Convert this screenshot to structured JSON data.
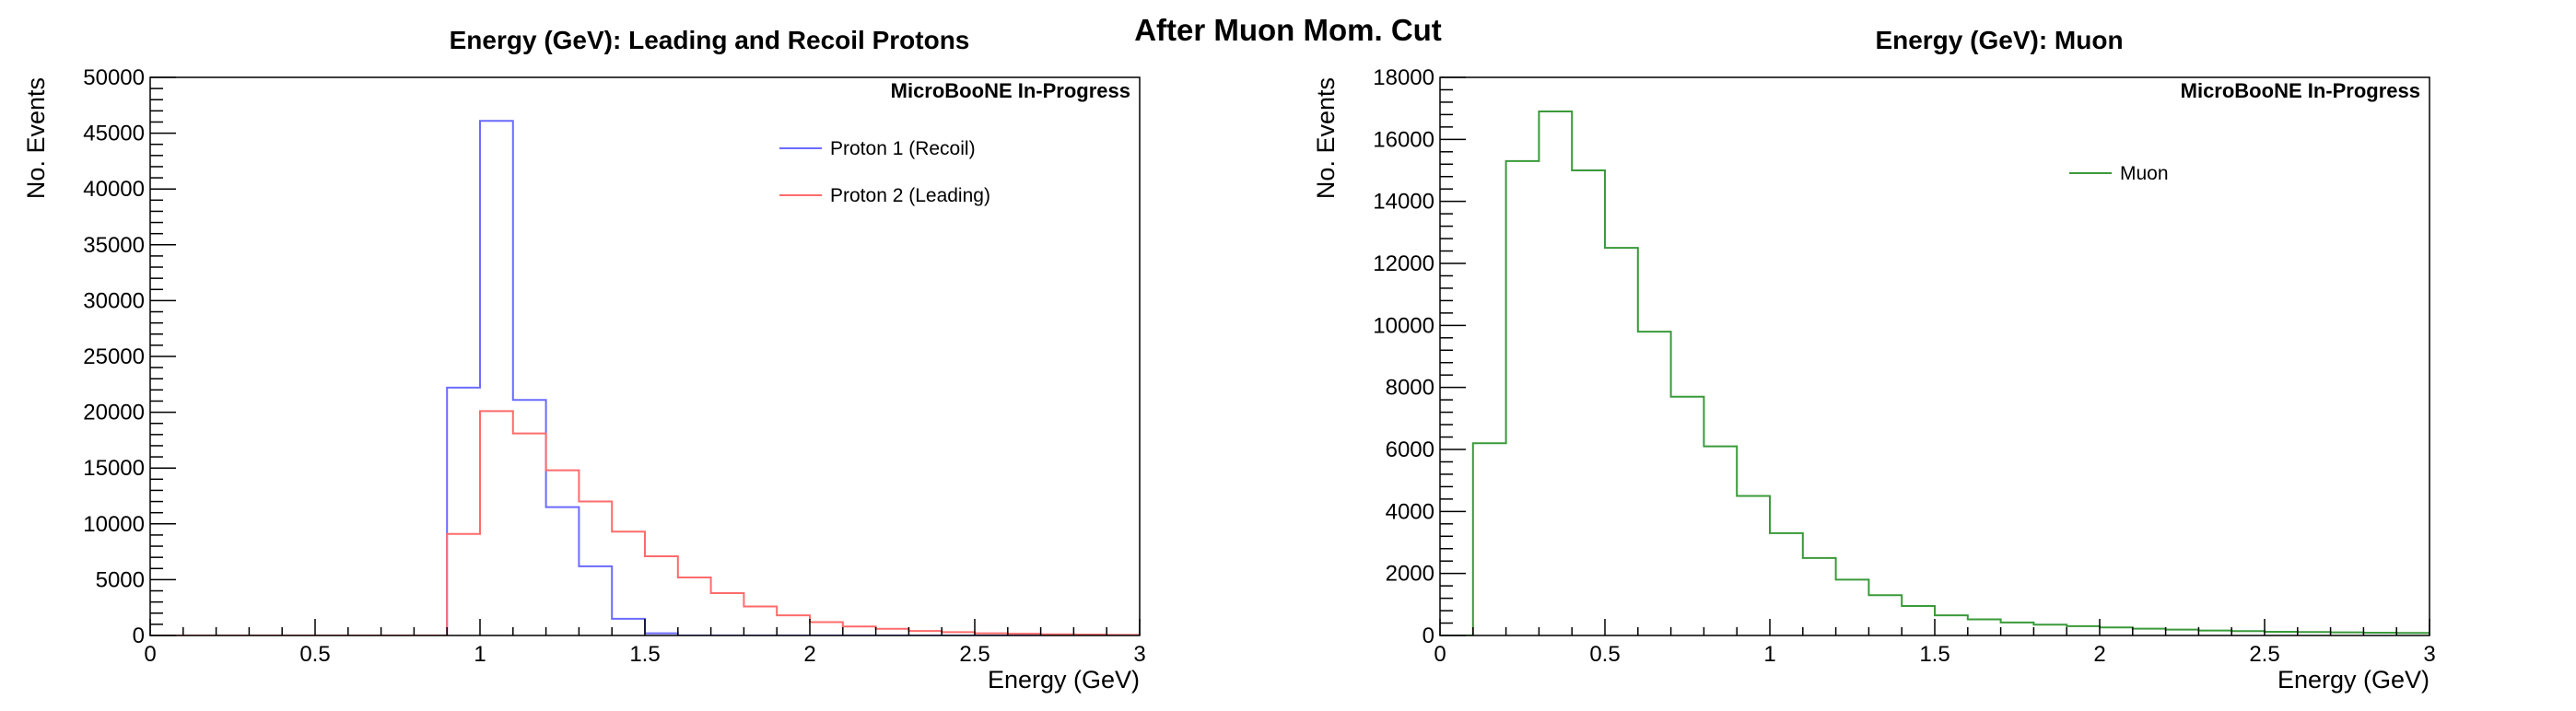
{
  "super_title": "After Muon Mom. Cut",
  "chart_data": [
    {
      "type": "histogram",
      "title": "Energy (GeV): Leading and Recoil Protons",
      "xlabel": "Energy (GeV)",
      "ylabel": "No. Events",
      "xlim": [
        0,
        3
      ],
      "ylim": [
        0,
        50000
      ],
      "bin_width": 0.1,
      "x_ticks": [
        "0",
        "0.5",
        "1",
        "1.5",
        "2",
        "2.5",
        "3"
      ],
      "y_ticks": [
        "0",
        "5000",
        "10000",
        "15000",
        "20000",
        "25000",
        "30000",
        "35000",
        "40000",
        "45000",
        "50000"
      ],
      "tag": "MicroBooNE In-Progress",
      "legend_position": "top-right",
      "grid": false,
      "series": [
        {
          "name": "Proton 1 (Recoil)",
          "color": "#6b6bff",
          "bin_edges": [
            0.0,
            0.1,
            0.2,
            0.3,
            0.4,
            0.5,
            0.6,
            0.7,
            0.8,
            0.9,
            1.0,
            1.1,
            1.2,
            1.3,
            1.4,
            1.5,
            1.6,
            1.7,
            1.8,
            1.9,
            2.0,
            2.1,
            2.2,
            2.3,
            2.4,
            2.5,
            2.6,
            2.7,
            2.8,
            2.9,
            3.0
          ],
          "values": [
            0,
            0,
            0,
            0,
            0,
            0,
            0,
            0,
            0,
            22200,
            46100,
            21100,
            11500,
            6200,
            1500,
            200,
            0,
            0,
            0,
            0,
            0,
            0,
            0,
            0,
            0,
            0,
            0,
            0,
            0,
            0
          ]
        },
        {
          "name": "Proton 2 (Leading)",
          "color": "#ff6b6b",
          "bin_edges": [
            0.0,
            0.1,
            0.2,
            0.3,
            0.4,
            0.5,
            0.6,
            0.7,
            0.8,
            0.9,
            1.0,
            1.1,
            1.2,
            1.3,
            1.4,
            1.5,
            1.6,
            1.7,
            1.8,
            1.9,
            2.0,
            2.1,
            2.2,
            2.3,
            2.4,
            2.5,
            2.6,
            2.7,
            2.8,
            2.9,
            3.0
          ],
          "values": [
            0,
            0,
            0,
            0,
            0,
            0,
            0,
            0,
            0,
            9100,
            20100,
            18100,
            14800,
            12000,
            9300,
            7100,
            5200,
            3800,
            2600,
            1800,
            1200,
            800,
            600,
            400,
            300,
            200,
            150,
            100,
            80,
            50
          ]
        }
      ]
    },
    {
      "type": "histogram",
      "title": "Energy (GeV): Muon",
      "xlabel": "Energy (GeV)",
      "ylabel": "No. Events",
      "xlim": [
        0,
        3
      ],
      "ylim": [
        0,
        18000
      ],
      "bin_width": 0.1,
      "x_ticks": [
        "0",
        "0.5",
        "1",
        "1.5",
        "2",
        "2.5",
        "3"
      ],
      "y_ticks": [
        "0",
        "2000",
        "4000",
        "6000",
        "8000",
        "10000",
        "12000",
        "14000",
        "16000",
        "18000"
      ],
      "tag": "MicroBooNE In-Progress",
      "legend_position": "top-center",
      "grid": false,
      "series": [
        {
          "name": "Muon",
          "color": "#3a9a3a",
          "bin_edges": [
            0.0,
            0.1,
            0.2,
            0.3,
            0.4,
            0.5,
            0.6,
            0.7,
            0.8,
            0.9,
            1.0,
            1.1,
            1.2,
            1.3,
            1.4,
            1.5,
            1.6,
            1.7,
            1.8,
            1.9,
            2.0,
            2.1,
            2.2,
            2.3,
            2.4,
            2.5,
            2.6,
            2.7,
            2.8,
            2.9,
            3.0
          ],
          "values": [
            0,
            6200,
            15300,
            16900,
            15000,
            12500,
            9800,
            7700,
            6100,
            4500,
            3300,
            2500,
            1800,
            1300,
            950,
            650,
            520,
            420,
            350,
            300,
            260,
            220,
            190,
            160,
            140,
            120,
            110,
            100,
            90,
            80
          ]
        }
      ]
    }
  ]
}
